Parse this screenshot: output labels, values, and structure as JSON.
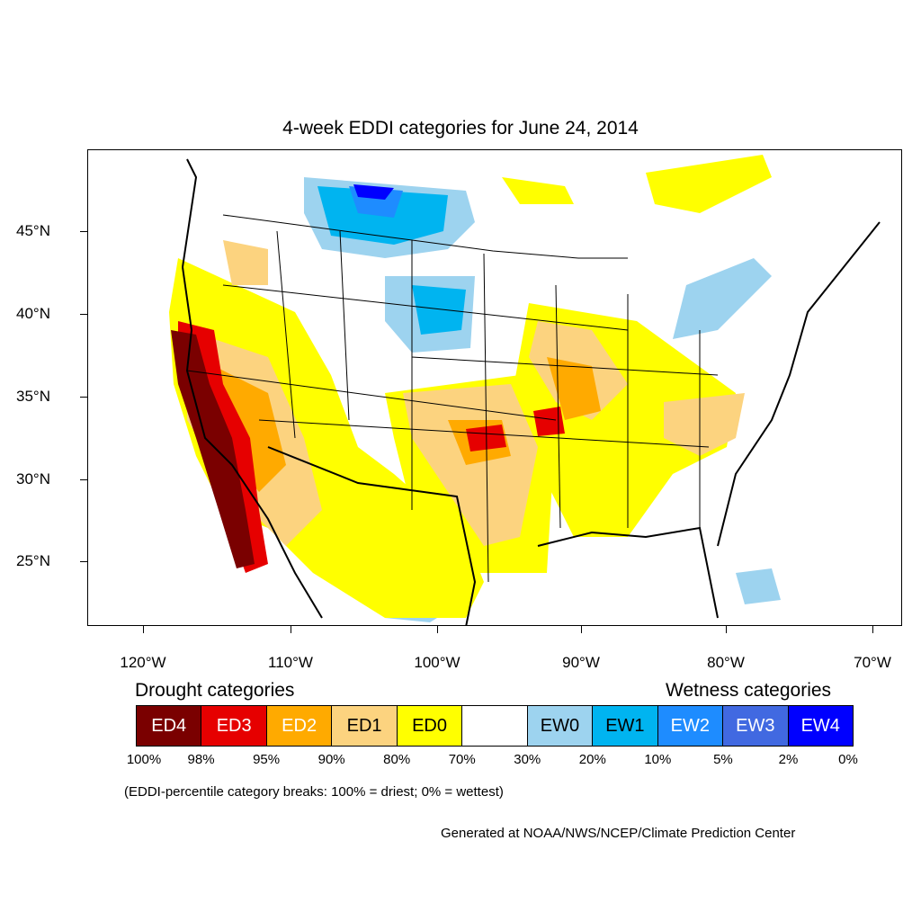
{
  "title": "4-week EDDI categories for June 24, 2014",
  "axes": {
    "y_labels": [
      "45°N",
      "40°N",
      "35°N",
      "30°N",
      "25°N"
    ],
    "x_labels": [
      "120°W",
      "110°W",
      "100°W",
      "90°W",
      "80°W",
      "70°W"
    ]
  },
  "legend": {
    "drought_heading": "Drought categories",
    "wetness_heading": "Wetness categories",
    "categories": [
      {
        "label": "ED4",
        "color": "#7a0000",
        "text_color": "#ffffff"
      },
      {
        "label": "ED3",
        "color": "#e60000",
        "text_color": "#ffffff"
      },
      {
        "label": "ED2",
        "color": "#ffaa00",
        "text_color": "#ffffff"
      },
      {
        "label": "ED1",
        "color": "#fcd37f",
        "text_color": "#000000"
      },
      {
        "label": "ED0",
        "color": "#ffff00",
        "text_color": "#000000"
      },
      {
        "label": "",
        "color": "#ffffff",
        "text_color": "#000000"
      },
      {
        "label": "EW0",
        "color": "#9dd3ef",
        "text_color": "#000000"
      },
      {
        "label": "EW1",
        "color": "#00b4f0",
        "text_color": "#000000"
      },
      {
        "label": "EW2",
        "color": "#1e8cff",
        "text_color": "#ffffff"
      },
      {
        "label": "EW3",
        "color": "#4169e1",
        "text_color": "#ffffff"
      },
      {
        "label": "EW4",
        "color": "#0000ff",
        "text_color": "#ffffff"
      }
    ],
    "breaks": [
      "100%",
      "98%",
      "95%",
      "90%",
      "80%",
      "70%",
      "30%",
      "20%",
      "10%",
      "5%",
      "2%",
      "0%"
    ]
  },
  "note": "(EDDI-percentile category breaks: 100% = driest; 0% = wettest)",
  "credit": "Generated at NOAA/NWS/NCEP/Climate Prediction Center"
}
